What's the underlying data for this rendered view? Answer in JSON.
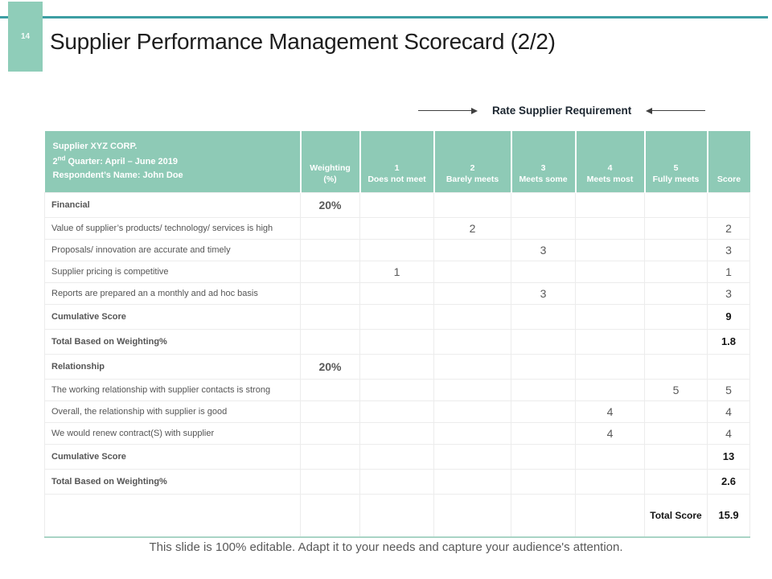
{
  "slide": {
    "page_number": "14",
    "title": "Supplier Performance Management Scorecard (2/2)",
    "callout_label": "Rate Supplier Requirement",
    "footer": "This slide is 100% editable. Adapt it to your needs and capture your audience's attention."
  },
  "colors": {
    "header_teal": "#8ECAB6",
    "accent_line_teal": "#3D9EA3",
    "badge_teal": "#8FCDB9",
    "table_bottom_teal": "#A9D4C5"
  },
  "table": {
    "info": {
      "line1": "Supplier XYZ CORP.",
      "quarter_prefix": "2",
      "quarter_sup": "nd",
      "quarter_rest": " Quarter: April – June 2019",
      "line3": "Respondent’s Name: John Doe"
    },
    "headers": {
      "weighting": "Weighting",
      "weighting_unit": "(%)",
      "ratings": [
        {
          "num": "1",
          "label": "Does not meet"
        },
        {
          "num": "2",
          "label": "Barely meets"
        },
        {
          "num": "3",
          "label": "Meets some"
        },
        {
          "num": "4",
          "label": "Meets most"
        },
        {
          "num": "5",
          "label": "Fully meets"
        }
      ],
      "score": "Score"
    },
    "rows": [
      {
        "type": "section",
        "label": "Financial",
        "weighting": "20%",
        "r1": "",
        "r2": "",
        "r3": "",
        "r4": "",
        "r5": "",
        "score": ""
      },
      {
        "type": "item",
        "label": "Value of supplier’s products/ technology/ services is high",
        "weighting": "",
        "r1": "",
        "r2": "2",
        "r3": "",
        "r4": "",
        "r5": "",
        "score": "2"
      },
      {
        "type": "item",
        "label": "Proposals/ innovation are accurate and timely",
        "weighting": "",
        "r1": "",
        "r2": "",
        "r3": "3",
        "r4": "",
        "r5": "",
        "score": "3"
      },
      {
        "type": "item",
        "label": "Supplier pricing is competitive",
        "weighting": "",
        "r1": "1",
        "r2": "",
        "r3": "",
        "r4": "",
        "r5": "",
        "score": "1"
      },
      {
        "type": "item",
        "label": "Reports are prepared an a monthly and ad hoc basis",
        "weighting": "",
        "r1": "",
        "r2": "",
        "r3": "3",
        "r4": "",
        "r5": "",
        "score": "3"
      },
      {
        "type": "section",
        "label": "Cumulative Score",
        "weighting": "",
        "r1": "",
        "r2": "",
        "r3": "",
        "r4": "",
        "r5": "",
        "score": "9"
      },
      {
        "type": "section",
        "label": "Total Based on Weighting%",
        "weighting": "",
        "r1": "",
        "r2": "",
        "r3": "",
        "r4": "",
        "r5": "",
        "score": "1.8"
      },
      {
        "type": "section",
        "label": "Relationship",
        "weighting": "20%",
        "r1": "",
        "r2": "",
        "r3": "",
        "r4": "",
        "r5": "",
        "score": ""
      },
      {
        "type": "item",
        "label": "The working relationship with supplier contacts is strong",
        "weighting": "",
        "r1": "",
        "r2": "",
        "r3": "",
        "r4": "",
        "r5": "5",
        "score": "5"
      },
      {
        "type": "item",
        "label": "Overall, the relationship with supplier is good",
        "weighting": "",
        "r1": "",
        "r2": "",
        "r3": "",
        "r4": "4",
        "r5": "",
        "score": "4"
      },
      {
        "type": "item",
        "label": "We would renew contract(S) with supplier",
        "weighting": "",
        "r1": "",
        "r2": "",
        "r3": "",
        "r4": "4",
        "r5": "",
        "score": "4"
      },
      {
        "type": "section",
        "label": "Cumulative Score",
        "weighting": "",
        "r1": "",
        "r2": "",
        "r3": "",
        "r4": "",
        "r5": "",
        "score": "13"
      },
      {
        "type": "section",
        "label": "Total Based on Weighting%",
        "weighting": "",
        "r1": "",
        "r2": "",
        "r3": "",
        "r4": "",
        "r5": "",
        "score": "2.6"
      },
      {
        "type": "total",
        "label": "",
        "weighting": "",
        "r1": "",
        "r2": "",
        "r3": "",
        "r4": "",
        "r5": "Total Score",
        "score": "15.9"
      }
    ]
  }
}
